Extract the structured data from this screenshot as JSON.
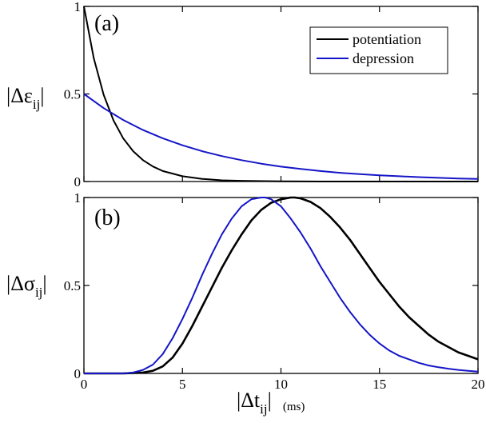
{
  "chart_data": [
    {
      "type": "line",
      "panel_label": "(a)",
      "ylabel": {
        "main": "|Δε",
        "sub": "ij",
        "close": "|"
      },
      "xlim": [
        0,
        20
      ],
      "ylim": [
        0,
        1
      ],
      "yticks": [
        {
          "value": 0,
          "label": "0"
        },
        {
          "value": 0.5,
          "label": "0.5"
        },
        {
          "value": 1,
          "label": "1"
        }
      ],
      "legend": {
        "placement": "top-right"
      },
      "series": [
        {
          "name": "potentiation",
          "color": "#000000",
          "x": [
            0,
            0.5,
            1,
            1.5,
            2,
            2.5,
            3,
            3.5,
            4,
            5,
            6,
            7,
            8,
            10,
            12,
            15,
            20
          ],
          "y": [
            1.0,
            0.704,
            0.495,
            0.349,
            0.245,
            0.173,
            0.122,
            0.086,
            0.06,
            0.03,
            0.015,
            0.007,
            0.004,
            0.001,
            0.0,
            0.0,
            0.0
          ]
        },
        {
          "name": "depression",
          "color": "#1515c8",
          "x": [
            0,
            1,
            2,
            3,
            4,
            5,
            6,
            7,
            8,
            9,
            10,
            11,
            12,
            13,
            14,
            15,
            16,
            17,
            18,
            19,
            20
          ],
          "y": [
            0.5,
            0.419,
            0.351,
            0.294,
            0.247,
            0.207,
            0.173,
            0.145,
            0.122,
            0.102,
            0.085,
            0.072,
            0.06,
            0.05,
            0.042,
            0.035,
            0.03,
            0.025,
            0.021,
            0.017,
            0.015
          ]
        }
      ]
    },
    {
      "type": "line",
      "panel_label": "(b)",
      "ylabel": {
        "main": "|Δσ",
        "sub": "ij",
        "close": "|"
      },
      "xlabel": {
        "main": "|Δt",
        "sub": "ij",
        "close": "|",
        "unit": "(ms)"
      },
      "xlim": [
        0,
        20
      ],
      "ylim": [
        0,
        1
      ],
      "xticks": [
        {
          "value": 0,
          "label": "0"
        },
        {
          "value": 5,
          "label": "5"
        },
        {
          "value": 10,
          "label": "10"
        },
        {
          "value": 15,
          "label": "15"
        },
        {
          "value": 20,
          "label": "20"
        }
      ],
      "yticks": [
        {
          "value": 0,
          "label": "0"
        },
        {
          "value": 0.5,
          "label": "0.5"
        },
        {
          "value": 1,
          "label": "1"
        }
      ],
      "series": [
        {
          "name": "potentiation",
          "color": "#000000",
          "x": [
            0,
            2,
            3,
            3.5,
            4,
            4.5,
            5,
            5.5,
            6,
            6.5,
            7,
            7.5,
            8,
            8.5,
            9,
            9.5,
            10,
            10.5,
            10.7,
            11,
            11.5,
            12,
            12.5,
            13,
            13.5,
            14,
            14.5,
            15,
            15.5,
            16,
            16.5,
            17,
            17.5,
            18,
            18.5,
            19,
            19.5,
            20
          ],
          "y": [
            0.0,
            0.0,
            0.005,
            0.015,
            0.04,
            0.09,
            0.17,
            0.27,
            0.38,
            0.49,
            0.6,
            0.7,
            0.79,
            0.87,
            0.93,
            0.97,
            0.99,
            1.0,
            1.0,
            0.995,
            0.975,
            0.94,
            0.89,
            0.83,
            0.76,
            0.68,
            0.6,
            0.52,
            0.45,
            0.38,
            0.32,
            0.27,
            0.22,
            0.18,
            0.15,
            0.12,
            0.1,
            0.08
          ]
        },
        {
          "name": "depression",
          "color": "#1515c8",
          "x": [
            0,
            2,
            2.5,
            3,
            3.5,
            4,
            4.5,
            5,
            5.5,
            6,
            6.5,
            7,
            7.5,
            8,
            8.5,
            9,
            9.2,
            9.5,
            10,
            10.5,
            11,
            11.5,
            12,
            12.5,
            13,
            13.5,
            14,
            14.5,
            15,
            15.5,
            16,
            16.5,
            17,
            17.5,
            18,
            18.5,
            19,
            19.5,
            20
          ],
          "y": [
            0.0,
            0.0,
            0.005,
            0.02,
            0.05,
            0.11,
            0.2,
            0.31,
            0.43,
            0.56,
            0.68,
            0.79,
            0.88,
            0.95,
            0.99,
            1.0,
            1.0,
            0.99,
            0.95,
            0.88,
            0.8,
            0.71,
            0.61,
            0.52,
            0.43,
            0.35,
            0.28,
            0.22,
            0.17,
            0.13,
            0.1,
            0.08,
            0.06,
            0.045,
            0.035,
            0.027,
            0.02,
            0.015,
            0.01
          ]
        }
      ]
    }
  ]
}
